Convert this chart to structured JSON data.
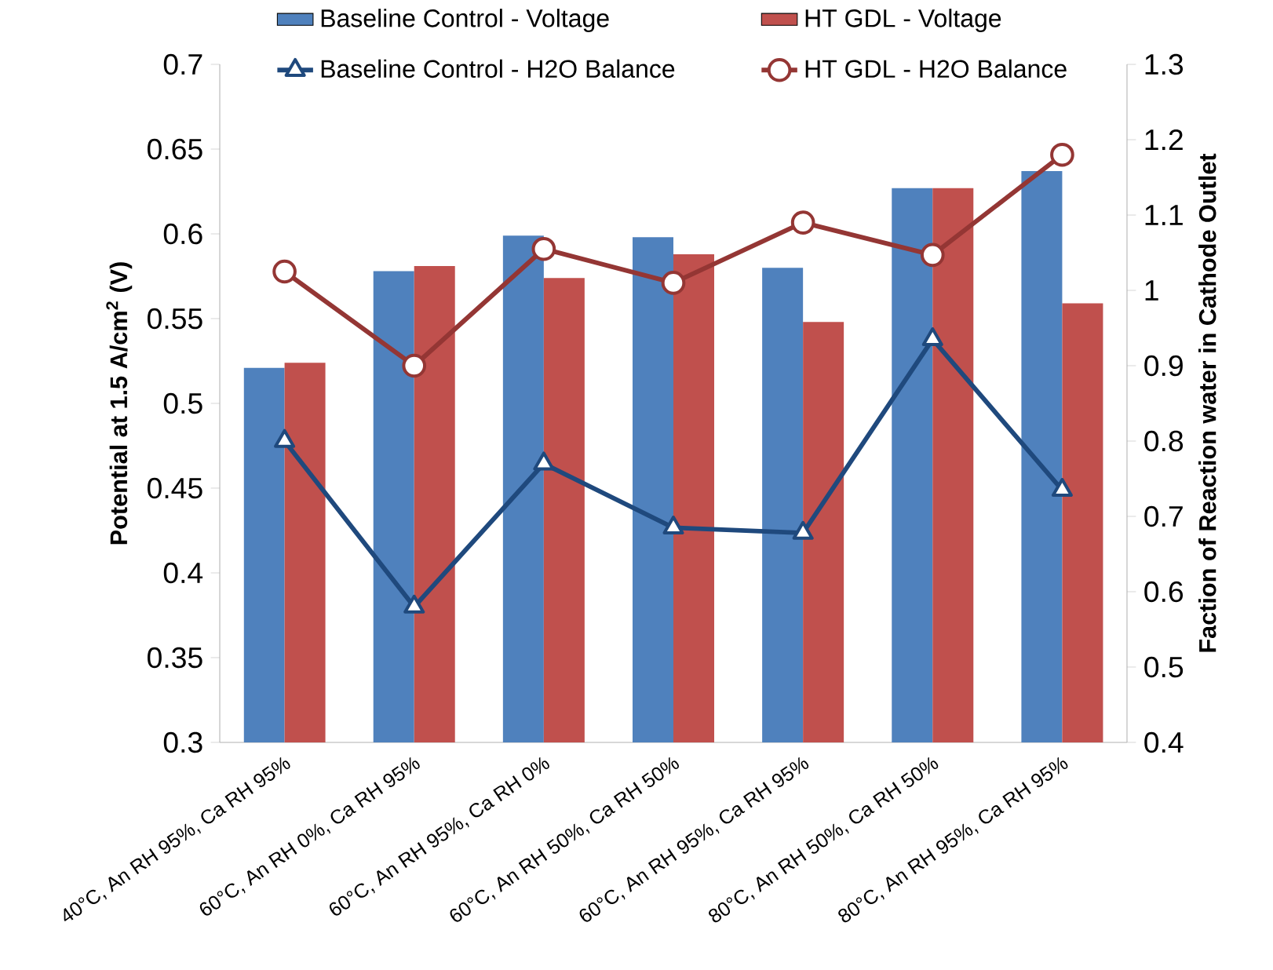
{
  "chart_data": {
    "type": "bar",
    "ylabel": "Potential at 1.5 A/cm$^{2}$ (V)",
    "y2label": "Faction of Reaction water in Cathode Outlet",
    "categories": [
      "40°C, An RH 95%, Ca RH 95%",
      "60°C, An RH 0%, Ca RH 95%",
      "60°C, An RH 95%, Ca RH 0%",
      "60°C, An RH 50%, Ca RH 50%",
      "60°C, An RH 95%, Ca RH 95%",
      "80°C, An RH 50%, Ca RH 50%",
      "80°C, An RH 95%, Ca RH 95%"
    ],
    "series": [
      {
        "name": "Baseline Control - Voltage",
        "color": "#4f81bd",
        "values": [
          0.521,
          0.578,
          0.599,
          0.598,
          0.58,
          0.627,
          0.637
        ]
      },
      {
        "name": "HT GDL - Voltage",
        "color": "#c0504d",
        "values": [
          0.524,
          0.581,
          0.574,
          0.588,
          0.548,
          0.627,
          0.559
        ]
      },
      {
        "name": "Baseline Control - H2O Balance",
        "type": "line",
        "axis": "y2",
        "marker": "triangle",
        "color": "#1f497d",
        "values": [
          0.8,
          0.58,
          0.77,
          0.685,
          0.678,
          0.935,
          0.735
        ]
      },
      {
        "name": "HT GDL - H2O Balance",
        "type": "line",
        "axis": "y2",
        "marker": "circle",
        "color": "#943634",
        "values": [
          1.025,
          0.9,
          1.055,
          1.01,
          1.09,
          1.047,
          1.18
        ]
      }
    ],
    "ylim": [
      0.3,
      0.7
    ],
    "yticks": [
      0.3,
      0.35,
      0.4,
      0.45,
      0.5,
      0.55,
      0.6,
      0.65,
      0.7
    ],
    "y2lim": [
      0.4,
      1.3
    ],
    "y2ticks": [
      0.4,
      0.5,
      0.6,
      0.7,
      0.8,
      0.9,
      1,
      1.1,
      1.2,
      1.3
    ],
    "legend": "top",
    "grid": false
  }
}
